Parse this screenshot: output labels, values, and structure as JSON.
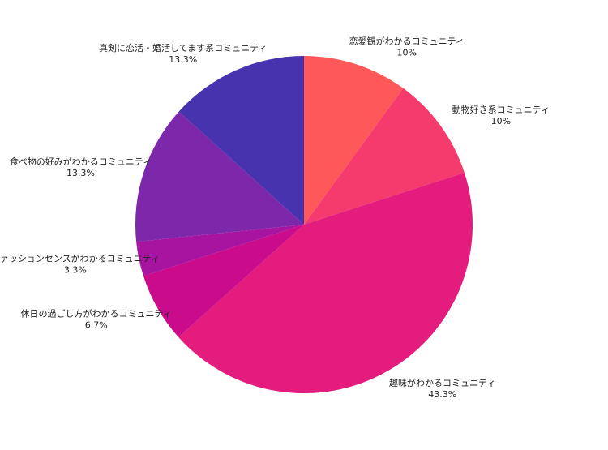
{
  "chart_data": {
    "type": "pie",
    "start": "top",
    "direction": "clockwise",
    "slices": [
      {
        "label": "恋愛観がわかるコミュニティ",
        "value": 10,
        "pct_label": "10%",
        "color": "#fe5859"
      },
      {
        "label": "動物好き系コミュニティ",
        "value": 10,
        "pct_label": "10%",
        "color": "#f53a6e"
      },
      {
        "label": "趣味がわかるコミュニティ",
        "value": 43.3,
        "pct_label": "43.3%",
        "color": "#e31c7e"
      },
      {
        "label": "休日の過ごし方がわかるコミュニティ",
        "value": 6.7,
        "pct_label": "6.7%",
        "color": "#c90b8c"
      },
      {
        "label": "ファッションセンスがわかるコミュニティ",
        "value": 3.3,
        "pct_label": "3.3%",
        "color": "#a614a0"
      },
      {
        "label": "食べ物の好みがわかるコミュニティ",
        "value": 13.3,
        "pct_label": "13.3%",
        "color": "#7d27ab"
      },
      {
        "label": "真剣に恋活・婚活してます系コミュニティ",
        "value": 13.3,
        "pct_label": "13.3%",
        "color": "#4733ad"
      }
    ]
  }
}
